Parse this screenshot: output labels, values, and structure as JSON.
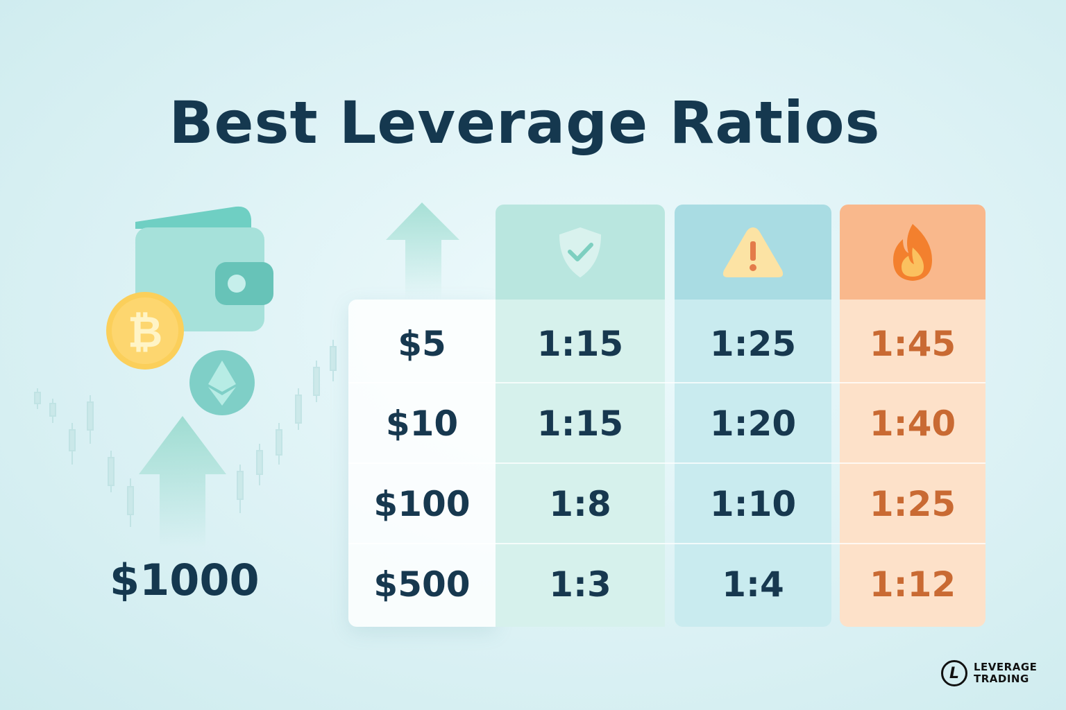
{
  "title": "Best Leverage Ratios",
  "balance": "$1000",
  "columns": [
    {
      "icon": "shield-check-icon",
      "color": "#b9e6df"
    },
    {
      "icon": "warning-icon",
      "color": "#a9dce3"
    },
    {
      "icon": "fire-icon",
      "color": "#f9b88c"
    }
  ],
  "rows": [
    {
      "amount": "$5",
      "safe": "1:15",
      "moderate": "1:25",
      "aggressive": "1:45"
    },
    {
      "amount": "$10",
      "safe": "1:15",
      "moderate": "1:20",
      "aggressive": "1:40"
    },
    {
      "amount": "$100",
      "safe": "1:8",
      "moderate": "1:10",
      "aggressive": "1:25"
    },
    {
      "amount": "$500",
      "safe": "1:3",
      "moderate": "1:4",
      "aggressive": "1:12"
    }
  ],
  "logo": {
    "mark": "L",
    "line1": "LEVERAGE",
    "line2": "TRADING"
  },
  "icons": [
    "wallet-icon",
    "bitcoin-icon",
    "ethereum-icon",
    "up-arrow-icon",
    "candlestick-chart-icon"
  ]
}
